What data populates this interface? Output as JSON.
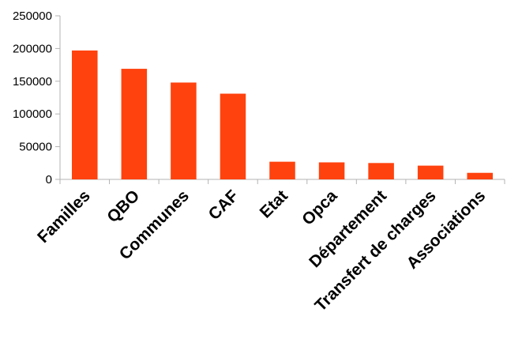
{
  "chart_data": {
    "type": "bar",
    "title": "",
    "xlabel": "",
    "ylabel": "",
    "categories": [
      "Familles",
      "QBO",
      "Communes",
      "CAF",
      "Etat",
      "Opca",
      "Département",
      "Transfert de charges",
      "Associations"
    ],
    "values": [
      197000,
      169000,
      148000,
      131000,
      27000,
      26000,
      25000,
      21000,
      10000
    ],
    "ylim": [
      0,
      250000
    ],
    "yticks": [
      "0",
      "50000",
      "100000",
      "150000",
      "200000",
      "250000"
    ],
    "grid": false,
    "legend": "none",
    "bar_color": "#ff420e"
  }
}
